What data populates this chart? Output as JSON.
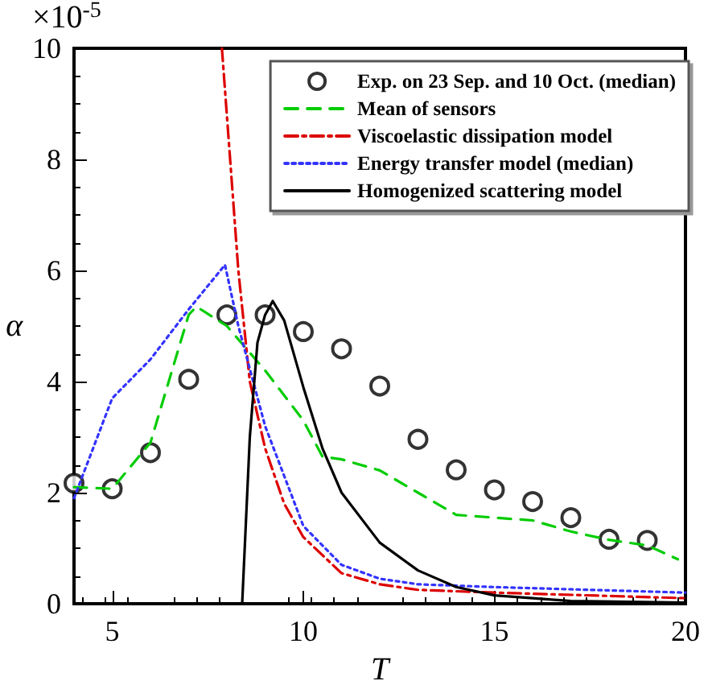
{
  "chart_data": {
    "type": "line",
    "xlabel": "T",
    "ylabel": "α",
    "annotations": [
      "×10$^{-5}$"
    ],
    "xlim": [
      4,
      20
    ],
    "xticks": [
      5,
      10,
      15,
      20
    ],
    "ylim": [
      0,
      10
    ],
    "yticks": [
      0,
      2,
      4,
      6,
      8,
      10
    ],
    "grid": false,
    "legend": "top right",
    "series": [
      {
        "name": "Exp. on 23 Sep. and 10 Oct. (median)",
        "type": "scatter",
        "marker": "circle",
        "color": "#000000",
        "x": [
          4,
          5,
          6,
          7,
          8,
          9,
          10,
          11,
          12,
          13,
          14,
          15,
          16,
          17,
          18,
          19
        ],
        "values": [
          2.17,
          2.07,
          2.72,
          4.04,
          5.2,
          5.2,
          4.9,
          4.59,
          3.92,
          2.96,
          2.41,
          2.05,
          1.84,
          1.55,
          1.16,
          1.14
        ]
      },
      {
        "name": "Mean of sensors",
        "line_style": "dashed",
        "color": "#00cc00",
        "x": [
          4,
          5,
          6,
          7,
          7.2,
          8,
          9,
          10,
          10.5,
          11,
          12,
          13,
          14,
          15,
          16,
          17,
          18,
          19,
          19.8
        ],
        "values": [
          2.1,
          2.07,
          2.9,
          5.2,
          5.35,
          5.0,
          4.2,
          3.3,
          2.65,
          2.6,
          2.4,
          2.0,
          1.6,
          1.55,
          1.5,
          1.3,
          1.15,
          1.05,
          0.8
        ]
      },
      {
        "name": "Viscoelastic dissipation model",
        "line_style": "dashdot",
        "color": "#dd0000",
        "x": [
          7.87,
          8.3,
          8.6,
          9,
          9.5,
          10,
          11,
          12,
          13,
          15,
          20
        ],
        "values": [
          10,
          6,
          4,
          2.8,
          1.8,
          1.2,
          0.55,
          0.35,
          0.25,
          0.2,
          0.1
        ]
      },
      {
        "name": "Energy transfer model (median)",
        "line_style": "dotted",
        "color": "#3333ff",
        "x": [
          4,
          5,
          6,
          7,
          7.95,
          8.3,
          9,
          10,
          11,
          12,
          13,
          15,
          20
        ],
        "values": [
          1.9,
          3.7,
          4.4,
          5.3,
          6.1,
          5.0,
          3.2,
          1.4,
          0.7,
          0.45,
          0.35,
          0.3,
          0.2
        ]
      },
      {
        "name": "Homogenized scattering model",
        "line_style": "solid",
        "color": "#000000",
        "x": [
          8.4,
          8.6,
          8.8,
          9,
          9.2,
          9.5,
          10,
          10.5,
          11,
          12,
          13,
          14,
          15,
          17,
          20
        ],
        "values": [
          0,
          3,
          4.7,
          5.2,
          5.45,
          5.1,
          3.9,
          2.8,
          2.0,
          1.1,
          0.6,
          0.3,
          0.15,
          0.05,
          0.02
        ]
      }
    ]
  }
}
